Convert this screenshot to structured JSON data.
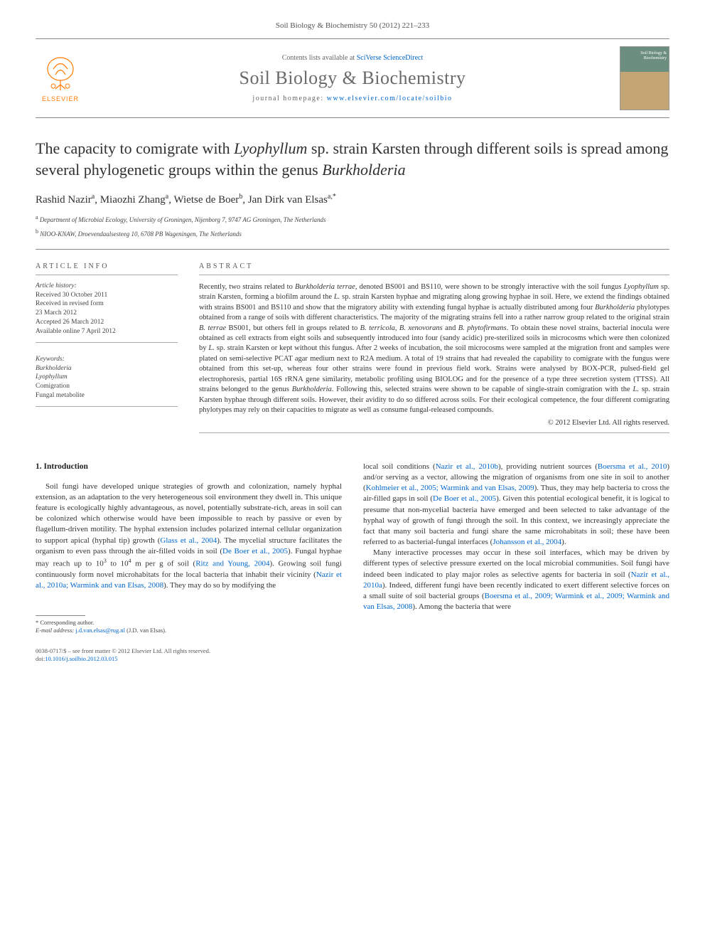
{
  "header": {
    "citation": "Soil Biology & Biochemistry 50 (2012) 221–233"
  },
  "masthead": {
    "publisher": "ELSEVIER",
    "contents_prefix": "Contents lists available at ",
    "contents_link": "SciVerse ScienceDirect",
    "journal_name": "Soil Biology & Biochemistry",
    "homepage_prefix": "journal homepage: ",
    "homepage_link": "www.elsevier.com/locate/soilbio",
    "cover_label": "Soil Biology & Biochemistry"
  },
  "title": {
    "pre": "The capacity to comigrate with ",
    "italic1": "Lyophyllum",
    "mid": " sp. strain Karsten through different soils is spread among several phylogenetic groups within the genus ",
    "italic2": "Burkholderia"
  },
  "authors": {
    "a1_name": "Rashid Nazir",
    "a1_sup": "a",
    "a2_name": "Miaozhi Zhang",
    "a2_sup": "a",
    "a3_name": "Wietse de Boer",
    "a3_sup": "b",
    "a4_name": "Jan Dirk van Elsas",
    "a4_sup": "a,",
    "a4_corr": "*"
  },
  "affiliations": {
    "a": "Department of Microbial Ecology, University of Groningen, Nijenborg 7, 9747 AG Groningen, The Netherlands",
    "b": "NIOO-KNAW, Droevendaalsesteeg 10, 6708 PB Wageningen, The Netherlands"
  },
  "article_info": {
    "heading": "ARTICLE INFO",
    "history_label": "Article history:",
    "received": "Received 30 October 2011",
    "revised1": "Received in revised form",
    "revised2": "23 March 2012",
    "accepted": "Accepted 26 March 2012",
    "online": "Available online 7 April 2012",
    "keywords_label": "Keywords:",
    "kw1": "Burkholderia",
    "kw2": "Lyophyllum",
    "kw3": "Comigration",
    "kw4": "Fungal metabolite"
  },
  "abstract": {
    "heading": "ABSTRACT",
    "text_parts": [
      {
        "t": "Recently, two strains related to "
      },
      {
        "t": "Burkholderia terrae",
        "i": true
      },
      {
        "t": ", denoted BS001 and BS110, were shown to be strongly interactive with the soil fungus "
      },
      {
        "t": "Lyophyllum",
        "i": true
      },
      {
        "t": " sp. strain Karsten, forming a biofilm around the "
      },
      {
        "t": "L.",
        "i": true
      },
      {
        "t": " sp. strain Karsten hyphae and migrating along growing hyphae in soil. Here, we extend the findings obtained with strains BS001 and BS110 and show that the migratory ability with extending fungal hyphae is actually distributed among four "
      },
      {
        "t": "Burkholderia",
        "i": true
      },
      {
        "t": " phylotypes obtained from a range of soils with different characteristics. The majority of the migrating strains fell into a rather narrow group related to the original strain "
      },
      {
        "t": "B. terrae",
        "i": true
      },
      {
        "t": " BS001, but others fell in groups related to "
      },
      {
        "t": "B. terricola",
        "i": true
      },
      {
        "t": ", "
      },
      {
        "t": "B. xenovorans",
        "i": true
      },
      {
        "t": " and "
      },
      {
        "t": "B. phytofirmans",
        "i": true
      },
      {
        "t": ". To obtain these novel strains, bacterial inocula were obtained as cell extracts from eight soils and subsequently introduced into four (sandy acidic) pre-sterilized soils in microcosms which were then colonized by "
      },
      {
        "t": "L.",
        "i": true
      },
      {
        "t": " sp. strain Karsten or kept without this fungus. After 2 weeks of incubation, the soil microcosms were sampled at the migration front and samples were plated on semi-selective PCAT agar medium next to R2A medium. A total of 19 strains that had revealed the capability to comigrate with the fungus were obtained from this set-up, whereas four other strains were found in previous field work. Strains were analysed by BOX-PCR, pulsed-field gel electrophoresis, partial 16S rRNA gene similarity, metabolic profiling using BIOLOG and for the presence of a type three secretion system (TTSS). All strains belonged to the genus "
      },
      {
        "t": "Burkholderia",
        "i": true
      },
      {
        "t": ". Following this, selected strains were shown to be capable of single-strain comigration with the "
      },
      {
        "t": "L.",
        "i": true
      },
      {
        "t": " sp. strain Karsten hyphae through different soils. However, their avidity to do so differed across soils. For their ecological competence, the four different comigrating phylotypes may rely on their capacities to migrate as well as consume fungal-released compounds."
      }
    ],
    "copyright": "© 2012 Elsevier Ltd. All rights reserved."
  },
  "body": {
    "section_heading": "1. Introduction",
    "col1_p1_parts": [
      {
        "t": "Soil fungi have developed unique strategies of growth and colonization, namely hyphal extension, as an adaptation to the very heterogeneous soil environment they dwell in. This unique feature is ecologically highly advantageous, as novel, potentially substrate-rich, areas in soil can be colonized which otherwise would have been impossible to reach by passive or even by flagellum-driven motility. The hyphal extension includes polarized internal cellular organization to support apical (hyphal tip) growth ("
      },
      {
        "t": "Glass et al., 2004",
        "r": true
      },
      {
        "t": "). The mycelial structure facilitates the organism to even pass through the air-filled voids in soil ("
      },
      {
        "t": "De Boer et al., 2005",
        "r": true
      },
      {
        "t": "). Fungal hyphae may reach up to 10"
      },
      {
        "t": "3",
        "sup": true
      },
      {
        "t": " to 10"
      },
      {
        "t": "4",
        "sup": true
      },
      {
        "t": " m per g of soil ("
      },
      {
        "t": "Ritz and Young, 2004",
        "r": true
      },
      {
        "t": "). Growing soil fungi continuously form novel microhabitats for the local bacteria that inhabit their vicinity ("
      },
      {
        "t": "Nazir et al., 2010a; Warmink and van Elsas, 2008",
        "r": true
      },
      {
        "t": "). They may do so by modifying the"
      }
    ],
    "col2_p1_parts": [
      {
        "t": "local soil conditions ("
      },
      {
        "t": "Nazir et al., 2010b",
        "r": true
      },
      {
        "t": "), providing nutrient sources ("
      },
      {
        "t": "Boersma et al., 2010",
        "r": true
      },
      {
        "t": ") and/or serving as a vector, allowing the migration of organisms from one site in soil to another ("
      },
      {
        "t": "Kohlmeier et al., 2005; Warmink and van Elsas, 2009",
        "r": true
      },
      {
        "t": "). Thus, they may help bacteria to cross the air-filled gaps in soil ("
      },
      {
        "t": "De Boer et al., 2005",
        "r": true
      },
      {
        "t": "). Given this potential ecological benefit, it is logical to presume that non-mycelial bacteria have emerged and been selected to take advantage of the hyphal way of growth of fungi through the soil. In this context, we increasingly appreciate the fact that many soil bacteria and fungi share the same microhabitats in soil; these have been referred to as bacterial-fungal interfaces ("
      },
      {
        "t": "Johansson et al., 2004",
        "r": true
      },
      {
        "t": ")."
      }
    ],
    "col2_p2_parts": [
      {
        "t": "Many interactive processes may occur in these soil interfaces, which may be driven by different types of selective pressure exerted on the local microbial communities. Soil fungi have indeed been indicated to play major roles as selective agents for bacteria in soil ("
      },
      {
        "t": "Nazir et al., 2010a",
        "r": true
      },
      {
        "t": "). Indeed, different fungi have been recently indicated to exert different selective forces on a small suite of soil bacterial groups ("
      },
      {
        "t": "Boersma et al., 2009; Warmink et al., 2009; Warmink and van Elsas, 2008",
        "r": true
      },
      {
        "t": "). Among the bacteria that were"
      }
    ]
  },
  "footnote": {
    "corr_label": "* Corresponding author.",
    "email_label": "E-mail address: ",
    "email": "j.d.van.elsas@rug.nl",
    "email_name": " (J.D. van Elsas)."
  },
  "bottom": {
    "line1": "0038-0717/$ – see front matter © 2012 Elsevier Ltd. All rights reserved.",
    "doi_prefix": "doi:",
    "doi": "10.1016/j.soilbio.2012.03.015"
  },
  "colors": {
    "link": "#0066cc",
    "elsevier_orange": "#ff7a00",
    "text": "#333333",
    "rule": "#888888"
  }
}
